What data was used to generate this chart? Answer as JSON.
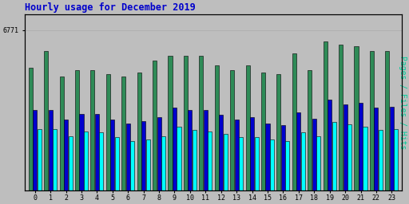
{
  "title": "Hourly usage for December 2019",
  "ylabel_right": "Pages / Files / Hits",
  "hours": [
    0,
    1,
    2,
    3,
    4,
    5,
    6,
    7,
    8,
    9,
    10,
    11,
    12,
    13,
    14,
    15,
    16,
    17,
    18,
    19,
    20,
    21,
    22,
    23
  ],
  "hits": [
    5200,
    5900,
    4800,
    5100,
    5100,
    4900,
    4800,
    5000,
    5500,
    5700,
    5700,
    5700,
    5300,
    5100,
    5300,
    5000,
    4900,
    5800,
    5100,
    6300,
    6150,
    6100,
    5900,
    5900
  ],
  "files": [
    3400,
    3400,
    3000,
    3250,
    3250,
    3000,
    2850,
    2950,
    3100,
    3500,
    3400,
    3400,
    3200,
    3000,
    3100,
    2850,
    2750,
    3300,
    3050,
    3850,
    3650,
    3700,
    3500,
    3550
  ],
  "pages": [
    2600,
    2600,
    2300,
    2500,
    2450,
    2250,
    2100,
    2150,
    2300,
    2700,
    2550,
    2500,
    2400,
    2250,
    2250,
    2150,
    2100,
    2450,
    2300,
    2900,
    2800,
    2700,
    2550,
    2600
  ],
  "max_val": 6771,
  "hits_color": "#2e8b57",
  "files_color": "#0000cd",
  "pages_color": "#00ffff",
  "bg_color": "#bebebe",
  "plot_bg_color": "#bebebe",
  "title_color": "#0000cc",
  "ylabel_right_color": "#00cc99",
  "bar_edge_color": "#000000"
}
